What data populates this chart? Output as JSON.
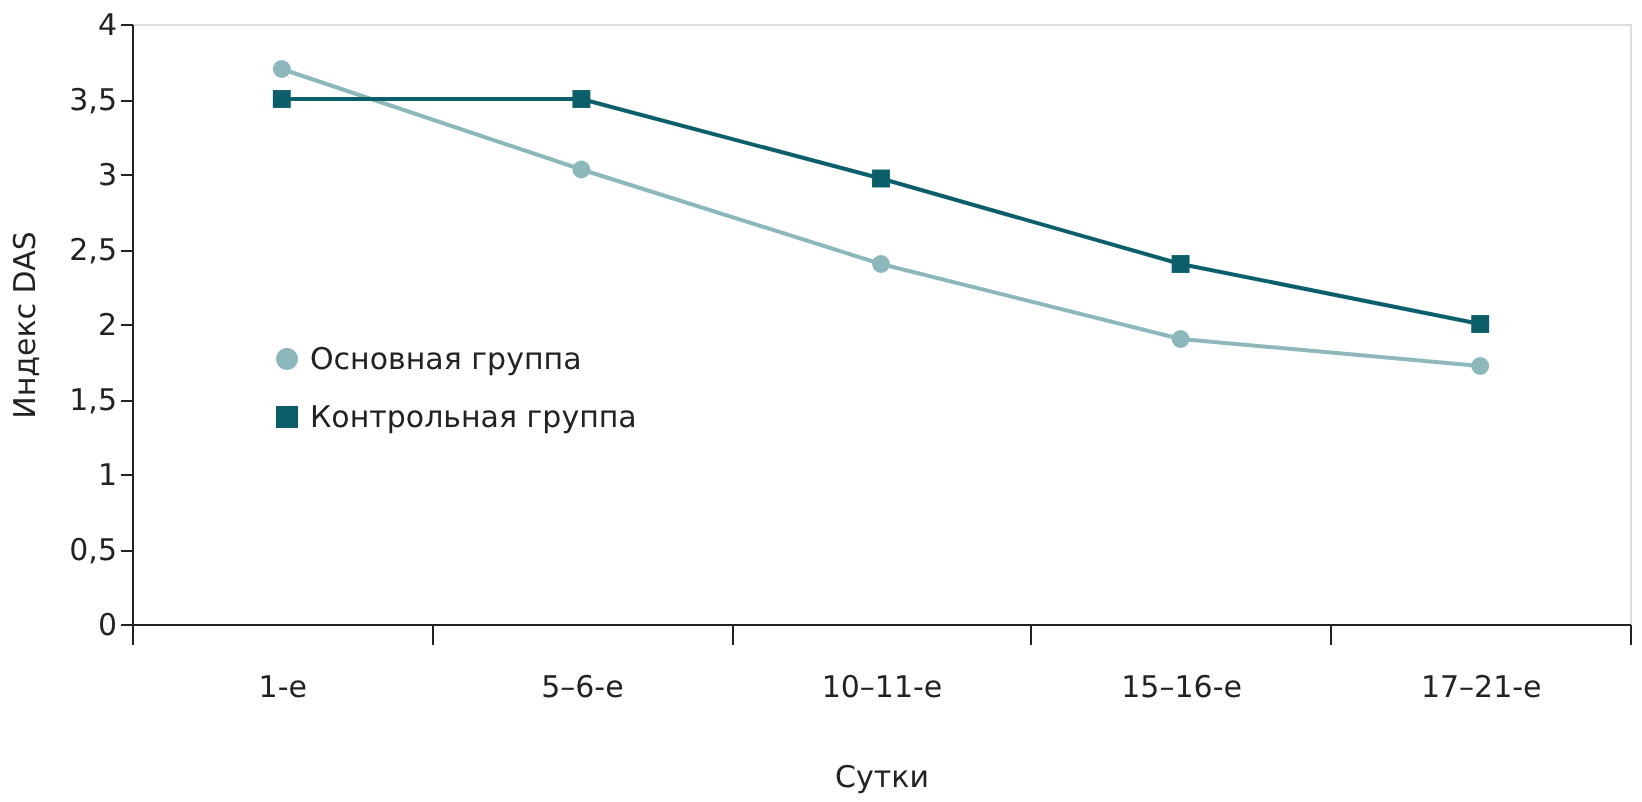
{
  "chart_data": {
    "type": "line",
    "xlabel": "Сутки",
    "ylabel": "Индекс DAS",
    "categories": [
      "1-е",
      "5–6-е",
      "10–11-е",
      "15–16-е",
      "17–21-е"
    ],
    "series": [
      {
        "name": "Основная группа",
        "color": "#8cb8bc",
        "marker": "circle",
        "values": [
          3.7,
          3.03,
          2.4,
          1.9,
          1.72
        ]
      },
      {
        "name": "Контрольная группа",
        "color": "#0b5f6b",
        "marker": "square",
        "values": [
          3.5,
          3.5,
          2.97,
          2.4,
          2.0
        ]
      }
    ],
    "ylim": [
      0,
      4
    ],
    "yticks": [
      0,
      {
        "value": 0.5,
        "label": "0,5"
      },
      1,
      {
        "value": 1.5,
        "label": "1,5"
      },
      2,
      {
        "value": 2.5,
        "label": "2,5"
      },
      3,
      {
        "value": 3.5,
        "label": "3,5"
      },
      4
    ],
    "grid": false,
    "legend": "left",
    "line_style": "solid"
  }
}
